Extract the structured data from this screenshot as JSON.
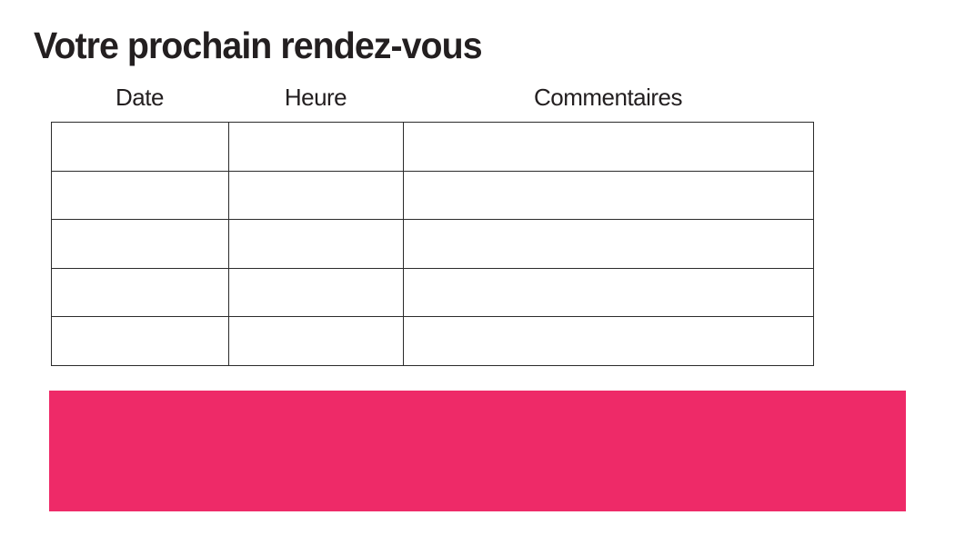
{
  "page": {
    "title": "Votre prochain rendez-vous"
  },
  "appointments_table": {
    "columns": [
      "Date",
      "Heure",
      "Commentaires"
    ],
    "rows": [
      {
        "date": "",
        "heure": "",
        "commentaires": ""
      },
      {
        "date": "",
        "heure": "",
        "commentaires": ""
      },
      {
        "date": "",
        "heure": "",
        "commentaires": ""
      },
      {
        "date": "",
        "heure": "",
        "commentaires": ""
      },
      {
        "date": "",
        "heure": "",
        "commentaires": ""
      }
    ]
  },
  "banner": {
    "text": "",
    "background_color": "#EE2A68"
  },
  "colors": {
    "text": "#231F20",
    "table_border": "#2B2B2B",
    "background": "#FFFFFF",
    "accent_pink": "#EE2A68"
  }
}
